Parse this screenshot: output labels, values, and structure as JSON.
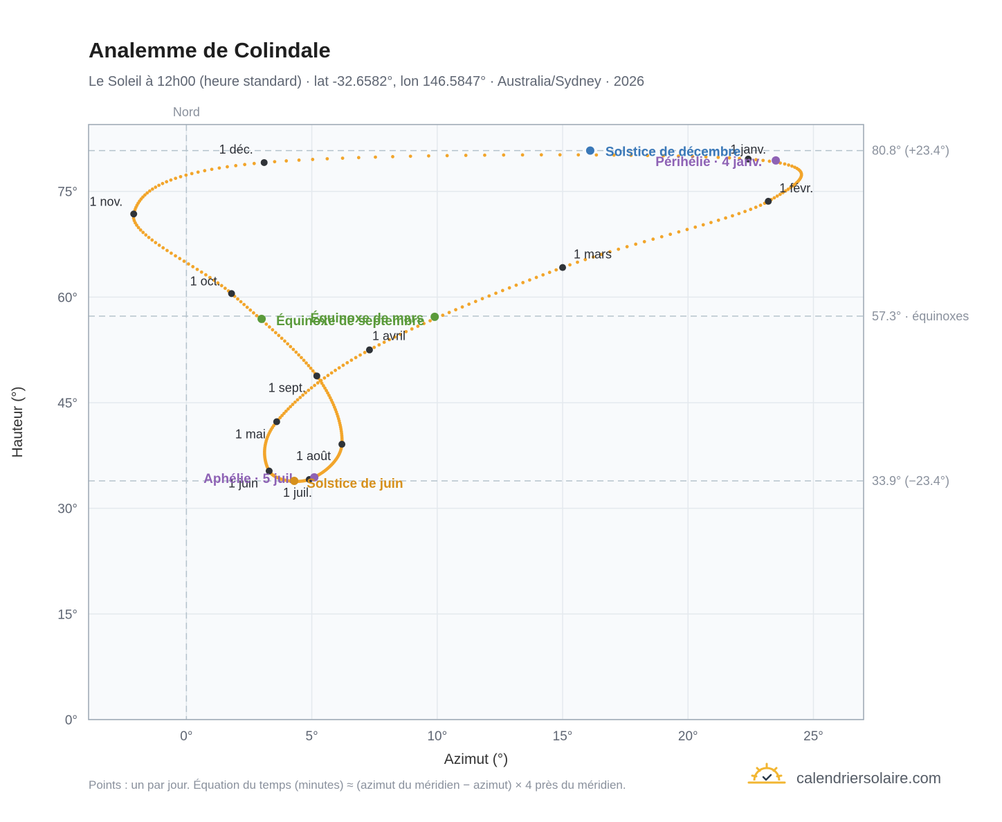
{
  "header": {
    "title": "Analemme de Colindale",
    "subtitle": "Le Soleil à 12h00 (heure standard) · lat -32.6582°, lon 146.5847° · Australia/Sydney · 2026"
  },
  "footer": {
    "note": "Points : un par jour. Équation du temps (minutes) ≈ (azimut du méridien − azimut) × 4 près du méridien.",
    "brand": "calendriersolaire.com",
    "brand_icon": "sun-check-icon"
  },
  "colors": {
    "curve": "#f2a52b",
    "month_marker": "#2f3338",
    "solstice_december": "#3a78b8",
    "solstice_june": "#d6901c",
    "equinox": "#5a9a3a",
    "apsis": "#8e62b5",
    "reference_line": "#b5c3cc",
    "grid": "#e4e9ee",
    "plot_bg": "#f8fafc",
    "frame": "#9aa6b2"
  },
  "chart_data": {
    "type": "scatter",
    "title": "Analemme de Colindale",
    "xlabel": "Azimut (°)",
    "ylabel": "Hauteur (°)",
    "xlim": [
      -3.9,
      27.0
    ],
    "ylim": [
      0,
      84.5
    ],
    "x_ticks": [
      0,
      5,
      10,
      15,
      20,
      25
    ],
    "x_tick_labels": [
      "0°",
      "5°",
      "10°",
      "15°",
      "20°",
      "25°"
    ],
    "y_ticks": [
      0,
      15,
      30,
      45,
      60,
      75
    ],
    "y_tick_labels": [
      "0°",
      "15°",
      "30°",
      "45°",
      "60°",
      "75°"
    ],
    "grid": true,
    "meridian": {
      "x": 0,
      "label": "Nord"
    },
    "reference_lines": [
      {
        "y": 80.8,
        "label": "80.8° (+23.4°)"
      },
      {
        "y": 57.3,
        "label": "57.3° · équinoxes"
      },
      {
        "y": 33.9,
        "label": "33.9° (−23.4°)"
      }
    ],
    "curve_knots": [
      {
        "month": 1,
        "x": 22.4,
        "y": 79.6
      },
      {
        "month": 2,
        "x": 23.2,
        "y": 73.6
      },
      {
        "month": 3,
        "x": 15.0,
        "y": 64.2
      },
      {
        "month": 4,
        "x": 7.3,
        "y": 52.5
      },
      {
        "month": 5,
        "x": 3.6,
        "y": 42.3
      },
      {
        "month": 6,
        "x": 3.3,
        "y": 35.3
      },
      {
        "month": 7,
        "x": 4.9,
        "y": 34.1
      },
      {
        "month": 8,
        "x": 6.2,
        "y": 39.1
      },
      {
        "month": 9,
        "x": 5.2,
        "y": 48.8
      },
      {
        "month": 10,
        "x": 1.8,
        "y": 60.5
      },
      {
        "month": 11,
        "x": -2.1,
        "y": 71.8
      },
      {
        "month": 12,
        "x": 3.1,
        "y": 79.1
      }
    ],
    "month_markers": [
      {
        "label": "1 janv.",
        "x": 22.4,
        "y": 79.6
      },
      {
        "label": "1 févr.",
        "x": 23.2,
        "y": 73.6
      },
      {
        "label": "1 mars",
        "x": 15.0,
        "y": 64.2
      },
      {
        "label": "1 avril",
        "x": 7.3,
        "y": 52.5
      },
      {
        "label": "1 mai",
        "x": 3.6,
        "y": 42.3
      },
      {
        "label": "1 juin",
        "x": 3.3,
        "y": 35.3
      },
      {
        "label": "1 juil.",
        "x": 4.9,
        "y": 34.1
      },
      {
        "label": "1 août",
        "x": 6.2,
        "y": 39.1
      },
      {
        "label": "1 sept.",
        "x": 5.2,
        "y": 48.8
      },
      {
        "label": "1 oct.",
        "x": 1.8,
        "y": 60.5
      },
      {
        "label": "1 nov.",
        "x": -2.1,
        "y": 71.8
      },
      {
        "label": "1 déc.",
        "x": 3.1,
        "y": 79.1
      }
    ],
    "events": [
      {
        "label": "Solstice de décembre",
        "x": 16.1,
        "y": 80.8,
        "kind": "solstice_december"
      },
      {
        "label": "Périhélie · 4 janv.",
        "x": 23.5,
        "y": 79.4,
        "kind": "apsis"
      },
      {
        "label": "Équinoxe de mars",
        "x": 9.9,
        "y": 57.2,
        "kind": "equinox"
      },
      {
        "label": "Équinoxe de septembre",
        "x": 3.0,
        "y": 56.9,
        "kind": "equinox"
      },
      {
        "label": "Aphélie · 5 juil.",
        "x": 5.1,
        "y": 34.4,
        "kind": "apsis"
      },
      {
        "label": "Solstice de juin",
        "x": 4.3,
        "y": 33.9,
        "kind": "solstice_june"
      }
    ]
  }
}
